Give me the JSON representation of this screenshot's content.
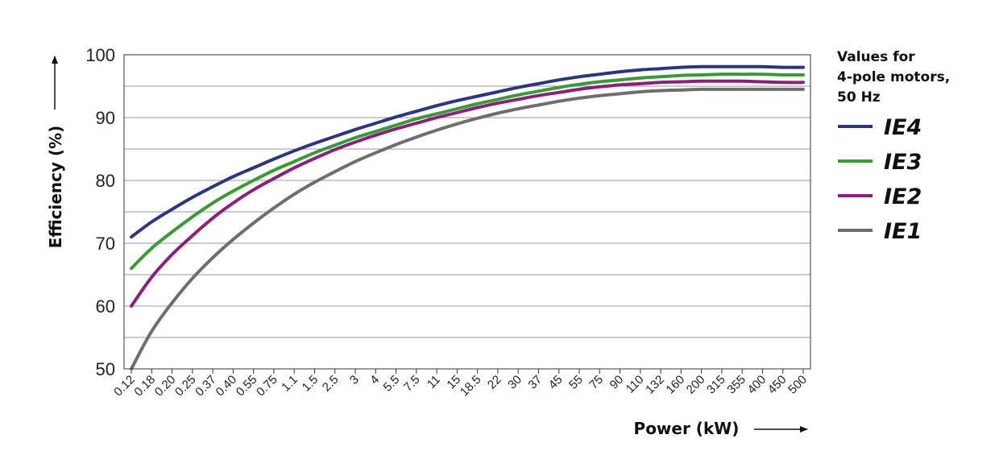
{
  "chart_data": {
    "type": "line",
    "xlabel": "Power (kW)",
    "ylabel": "Efficiency (%)",
    "ylim": [
      50,
      100
    ],
    "yticks": [
      50,
      60,
      70,
      80,
      90,
      100
    ],
    "grid": true,
    "legend_position": "right",
    "legend_title_lines": [
      "Values for",
      "4-pole motors,",
      "50 Hz"
    ],
    "categories": [
      "0.12",
      "0.18",
      "0.20",
      "0.25",
      "0.37",
      "0.40",
      "0.55",
      "0.75",
      "1.1",
      "1.5",
      "2.5",
      "3",
      "4",
      "5.5",
      "7.5",
      "11",
      "15",
      "18.5",
      "22",
      "30",
      "37",
      "45",
      "55",
      "75",
      "90",
      "110",
      "132",
      "160",
      "200",
      "315",
      "355",
      "400",
      "450",
      "500"
    ],
    "series": [
      {
        "name": "IE4",
        "color": "#2b3580",
        "values": [
          71,
          73.4,
          75.4,
          77.3,
          79.0,
          80.6,
          82.0,
          83.4,
          84.7,
          85.9,
          87.0,
          88.1,
          89.1,
          90.1,
          91.0,
          91.9,
          92.7,
          93.4,
          94.1,
          94.8,
          95.4,
          96.0,
          96.5,
          96.9,
          97.3,
          97.6,
          97.8,
          98.0,
          98.1,
          98.1,
          98.1,
          98.1,
          98.0,
          98.0
        ]
      },
      {
        "name": "IE3",
        "color": "#3a9a35",
        "values": [
          66,
          69.2,
          71.8,
          74.2,
          76.4,
          78.3,
          80.0,
          81.6,
          83.0,
          84.4,
          85.6,
          86.8,
          87.8,
          88.8,
          89.8,
          90.6,
          91.4,
          92.2,
          92.9,
          93.6,
          94.2,
          94.8,
          95.3,
          95.7,
          96.0,
          96.3,
          96.5,
          96.7,
          96.8,
          96.9,
          96.9,
          96.9,
          96.8,
          96.8
        ]
      },
      {
        "name": "IE2",
        "color": "#8b1f7e",
        "values": [
          60,
          64.6,
          68.2,
          71.2,
          74.0,
          76.4,
          78.5,
          80.3,
          82.0,
          83.5,
          84.9,
          86.1,
          87.2,
          88.2,
          89.1,
          90.0,
          90.8,
          91.6,
          92.3,
          92.9,
          93.5,
          94.0,
          94.5,
          94.9,
          95.2,
          95.4,
          95.6,
          95.7,
          95.8,
          95.8,
          95.8,
          95.7,
          95.6,
          95.6
        ]
      },
      {
        "name": "IE1",
        "color": "#6e6e6e",
        "values": [
          50,
          56.0,
          60.5,
          64.4,
          67.7,
          70.6,
          73.2,
          75.6,
          77.8,
          79.7,
          81.4,
          83.0,
          84.4,
          85.7,
          86.9,
          88.0,
          89.0,
          89.9,
          90.7,
          91.4,
          92.0,
          92.6,
          93.1,
          93.5,
          93.8,
          94.1,
          94.3,
          94.4,
          94.5,
          94.5,
          94.5,
          94.5,
          94.5,
          94.5
        ]
      }
    ]
  }
}
